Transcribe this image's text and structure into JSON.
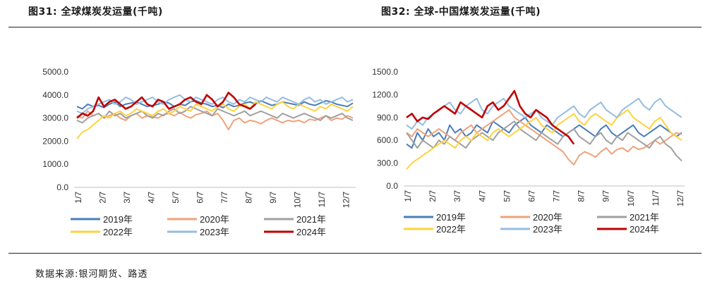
{
  "header": {
    "left_title": "图31:   全球煤炭发运量(千吨)",
    "right_title": "图32: 全球-中国煤炭发运量(千吨)"
  },
  "footer": {
    "source": "数据来源:银河期货、路透"
  },
  "chart_data": [
    {
      "type": "line",
      "title": "全球煤炭发运量(千吨)",
      "ylim": [
        0,
        5000
      ],
      "yticks": [
        "0.0",
        "1000.0",
        "2000.0",
        "3000.0",
        "4000.0",
        "5000.0"
      ],
      "xticks": [
        "1/7",
        "2/7",
        "3/7",
        "4/7",
        "5/7",
        "6/7",
        "7/7",
        "8/7",
        "9/7",
        "10/7",
        "11/7",
        "12/7"
      ],
      "legend_position": "bottom",
      "series": [
        {
          "name": "2019年",
          "color": "#4A7EBB",
          "values": [
            3500,
            3400,
            3600,
            3500,
            3550,
            3450,
            3600,
            3700,
            3500,
            3600,
            3650,
            3700,
            3600,
            3500,
            3550,
            3600,
            3700,
            3650,
            3500,
            3600,
            3550,
            3700,
            3750,
            3650,
            3600,
            3500,
            3550,
            3450,
            3600,
            3500,
            3550,
            3650,
            3700,
            3600,
            3750,
            3650,
            3550,
            3600,
            3700,
            3650,
            3600,
            3550,
            3700,
            3600,
            3550,
            3650,
            3750,
            3700,
            3600,
            3550,
            3500,
            3650
          ]
        },
        {
          "name": "2020年",
          "color": "#F0A27A",
          "values": [
            3100,
            3000,
            3300,
            3100,
            3200,
            3000,
            3100,
            3200,
            3000,
            2900,
            3100,
            3200,
            3000,
            3100,
            3050,
            3000,
            3150,
            3200,
            3100,
            3250,
            3100,
            3000,
            3150,
            3200,
            3300,
            3100,
            3200,
            2900,
            2500,
            2900,
            3000,
            2800,
            2900,
            2850,
            2750,
            2900,
            3000,
            2900,
            2800,
            2900,
            2850,
            2900,
            2800,
            2950,
            2900,
            3000,
            3100,
            2900,
            3000,
            2950,
            3100,
            3000
          ]
        },
        {
          "name": "2021年",
          "color": "#A0A0A0",
          "values": [
            2900,
            2800,
            3000,
            3100,
            3200,
            3000,
            3300,
            3100,
            3200,
            3000,
            3100,
            3200,
            3300,
            3100,
            3000,
            3200,
            3100,
            3300,
            3400,
            3200,
            3300,
            3500,
            3400,
            3300,
            3200,
            3100,
            3400,
            3300,
            3200,
            3100,
            3200,
            3300,
            3100,
            3200,
            3300,
            3200,
            3100,
            3000,
            3200,
            3100,
            3000,
            3100,
            3200,
            3100,
            3000,
            2900,
            3100,
            3000,
            3100,
            3200,
            3000,
            2900
          ]
        },
        {
          "name": "2022年",
          "color": "#FFD23F",
          "values": [
            2100,
            2400,
            2500,
            2700,
            2900,
            3100,
            3000,
            3200,
            3300,
            3100,
            3200,
            3400,
            3300,
            3200,
            3100,
            3300,
            3400,
            3200,
            3300,
            3500,
            3400,
            3300,
            3600,
            3500,
            3400,
            3300,
            3500,
            3600,
            3400,
            3300,
            3500,
            3600,
            3400,
            3700,
            3600,
            3500,
            3400,
            3600,
            3700,
            3500,
            3400,
            3600,
            3500,
            3400,
            3300,
            3500,
            3400,
            3600,
            3500,
            3400,
            3300,
            3500
          ]
        },
        {
          "name": "2023年",
          "color": "#96BDE0",
          "values": [
            3300,
            3200,
            3400,
            3500,
            3600,
            3700,
            3800,
            3600,
            3700,
            3900,
            3800,
            3600,
            3700,
            3800,
            3900,
            3700,
            3600,
            3800,
            3900,
            4000,
            3800,
            3700,
            3900,
            3800,
            3700,
            3600,
            3800,
            3900,
            3700,
            3600,
            3800,
            3700,
            3900,
            3800,
            3700,
            3900,
            3800,
            3700,
            3900,
            3800,
            3700,
            3600,
            3800,
            3900,
            3700,
            3800,
            3600,
            3700,
            3800,
            3900,
            3700,
            3800
          ]
        },
        {
          "name": "2024年",
          "color": "#C00000",
          "values": [
            3000,
            3200,
            3100,
            3300,
            3900,
            3500,
            3700,
            3800,
            3600,
            3400,
            3500,
            3700,
            3900,
            3600,
            3500,
            3800,
            3700,
            3400,
            3500,
            3600,
            3800,
            3900,
            3700,
            3600,
            4000,
            3800,
            3500,
            3700,
            4100,
            3900,
            3600,
            3500,
            3400,
            3600
          ]
        }
      ]
    },
    {
      "type": "line",
      "title": "全球-中国煤炭发运量(千吨)",
      "ylim": [
        0,
        1500
      ],
      "yticks": [
        "0.0",
        "300.0",
        "600.0",
        "900.0",
        "1200.0",
        "1500.0"
      ],
      "xticks": [
        "1/7",
        "2/7",
        "3/7",
        "4/7",
        "5/7",
        "6/7",
        "7/7",
        "8/7",
        "9/7",
        "10/7",
        "11/7",
        "12/7"
      ],
      "legend_position": "bottom",
      "series": [
        {
          "name": "2019年",
          "color": "#4A7EBB",
          "values": [
            550,
            500,
            700,
            600,
            750,
            650,
            700,
            600,
            800,
            700,
            750,
            650,
            700,
            800,
            750,
            700,
            850,
            800,
            750,
            700,
            800,
            850,
            900,
            800,
            750,
            700,
            800,
            750,
            700,
            650,
            700,
            750,
            800,
            750,
            700,
            650,
            750,
            800,
            700,
            650,
            700,
            750,
            800,
            700,
            650,
            700,
            750,
            800,
            750,
            700,
            650,
            700
          ]
        },
        {
          "name": "2020年",
          "color": "#F0A27A",
          "values": [
            700,
            650,
            750,
            700,
            650,
            700,
            750,
            700,
            650,
            600,
            700,
            750,
            800,
            700,
            750,
            800,
            850,
            900,
            950,
            1000,
            900,
            850,
            800,
            750,
            700,
            650,
            600,
            550,
            500,
            450,
            350,
            280,
            400,
            450,
            420,
            380,
            450,
            500,
            420,
            480,
            500,
            450,
            520,
            480,
            500,
            550,
            600,
            550,
            600,
            650,
            700,
            680
          ]
        },
        {
          "name": "2021年",
          "color": "#A0A0A0",
          "values": [
            700,
            600,
            500,
            600,
            550,
            500,
            600,
            550,
            650,
            600,
            550,
            500,
            600,
            650,
            700,
            650,
            600,
            700,
            750,
            800,
            850,
            750,
            700,
            650,
            600,
            700,
            650,
            600,
            550,
            650,
            700,
            750,
            650,
            600,
            550,
            650,
            700,
            600,
            550,
            650,
            600,
            700,
            650,
            600,
            550,
            500,
            600,
            650,
            550,
            500,
            400,
            330
          ]
        },
        {
          "name": "2022年",
          "color": "#FFD23F",
          "values": [
            220,
            300,
            350,
            400,
            450,
            500,
            550,
            600,
            550,
            500,
            600,
            650,
            600,
            700,
            650,
            600,
            700,
            750,
            700,
            650,
            700,
            750,
            800,
            850,
            900,
            800,
            750,
            700,
            800,
            850,
            900,
            950,
            850,
            800,
            900,
            950,
            900,
            850,
            800,
            900,
            950,
            1000,
            900,
            850,
            800,
            750,
            850,
            900,
            800,
            700,
            650,
            600
          ]
        },
        {
          "name": "2023年",
          "color": "#96BDE0",
          "values": [
            800,
            750,
            850,
            800,
            900,
            950,
            1000,
            1050,
            1100,
            1000,
            950,
            1050,
            1100,
            1150,
            1000,
            950,
            1050,
            1100,
            1150,
            1050,
            1000,
            950,
            900,
            950,
            1000,
            900,
            850,
            800,
            900,
            950,
            1000,
            1050,
            950,
            900,
            1000,
            1050,
            1100,
            1000,
            950,
            900,
            1000,
            1050,
            1100,
            1150,
            1050,
            1000,
            1100,
            1150,
            1050,
            1000,
            950,
            900
          ]
        },
        {
          "name": "2024年",
          "color": "#C00000",
          "values": [
            900,
            950,
            850,
            900,
            880,
            950,
            1000,
            1050,
            1000,
            950,
            1100,
            1050,
            1000,
            950,
            900,
            1050,
            1100,
            1000,
            1050,
            1150,
            1250,
            1050,
            950,
            900,
            1000,
            950,
            900,
            800,
            750,
            700,
            650,
            550
          ]
        }
      ]
    }
  ]
}
